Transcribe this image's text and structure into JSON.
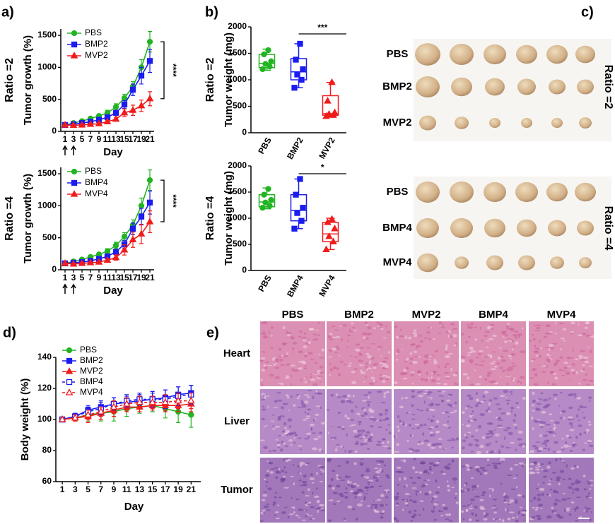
{
  "chart_data": [
    {
      "type": "line",
      "panel_label": "a)",
      "row_label": "Ratio =2",
      "y_label": "Tumor growth (%)",
      "x_label": "Day",
      "annotation": "****",
      "x": [
        1,
        3,
        5,
        7,
        9,
        11,
        13,
        15,
        17,
        19,
        21
      ],
      "xlim": [
        0,
        22
      ],
      "xticks": [
        1,
        3,
        5,
        7,
        9,
        11,
        13,
        15,
        17,
        19,
        21
      ],
      "ylim": [
        0,
        1600
      ],
      "yticks": [
        0,
        500,
        1000,
        1500
      ],
      "series": [
        {
          "name": "PBS",
          "color": "#22b422",
          "marker": "circle",
          "values": [
            100,
            130,
            160,
            200,
            240,
            290,
            380,
            520,
            700,
            1000,
            1400
          ],
          "errors": [
            10,
            15,
            20,
            25,
            30,
            40,
            50,
            60,
            80,
            120,
            160
          ]
        },
        {
          "name": "BMP2",
          "color": "#1c1cf0",
          "marker": "square",
          "values": [
            100,
            110,
            130,
            150,
            180,
            220,
            290,
            420,
            650,
            870,
            1100
          ],
          "errors": [
            10,
            15,
            15,
            20,
            25,
            30,
            40,
            60,
            90,
            130,
            180
          ]
        },
        {
          "name": "MVP2",
          "color": "#f01c1c",
          "marker": "triangle",
          "values": [
            100,
            95,
            100,
            110,
            120,
            150,
            190,
            290,
            330,
            400,
            510
          ],
          "errors": [
            10,
            10,
            10,
            15,
            15,
            20,
            30,
            60,
            80,
            90,
            110
          ]
        }
      ]
    },
    {
      "type": "line",
      "row_label": "Ratio =4",
      "y_label": "Tumor growth (%)",
      "x_label": "Day",
      "annotation": "****",
      "x": [
        1,
        3,
        5,
        7,
        9,
        11,
        13,
        15,
        17,
        19,
        21
      ],
      "xlim": [
        0,
        22
      ],
      "xticks": [
        1,
        3,
        5,
        7,
        9,
        11,
        13,
        15,
        17,
        19,
        21
      ],
      "ylim": [
        0,
        1600
      ],
      "yticks": [
        0,
        500,
        1000,
        1500
      ],
      "series": [
        {
          "name": "PBS",
          "color": "#22b422",
          "marker": "circle",
          "values": [
            100,
            130,
            160,
            200,
            240,
            290,
            380,
            520,
            700,
            1000,
            1400
          ],
          "errors": [
            10,
            15,
            20,
            25,
            30,
            40,
            50,
            60,
            80,
            120,
            160
          ]
        },
        {
          "name": "BMP4",
          "color": "#1c1cf0",
          "marker": "square",
          "values": [
            100,
            110,
            120,
            140,
            170,
            210,
            280,
            400,
            640,
            830,
            1050
          ],
          "errors": [
            10,
            15,
            15,
            20,
            25,
            30,
            40,
            60,
            90,
            130,
            180
          ]
        },
        {
          "name": "MVP4",
          "color": "#f01c1c",
          "marker": "triangle",
          "values": [
            100,
            90,
            100,
            110,
            120,
            150,
            190,
            310,
            470,
            560,
            750
          ],
          "errors": [
            10,
            10,
            10,
            15,
            20,
            25,
            40,
            80,
            120,
            150,
            170
          ]
        }
      ]
    },
    {
      "type": "box",
      "panel_label": "b)",
      "row_label": "Ratio =2",
      "y_label": "Tumor weight (mg)",
      "annotation": "***",
      "categories": [
        "PBS",
        "BMP2",
        "MVP2"
      ],
      "colors": [
        "#22b422",
        "#1c1cf0",
        "#f01c1c"
      ],
      "markers": [
        "circle",
        "square",
        "triangle"
      ],
      "ylim": [
        0,
        2000
      ],
      "yticks": [
        0,
        500,
        1000,
        1500,
        2000
      ],
      "boxes": [
        {
          "min": 1180,
          "q1": 1230,
          "median": 1310,
          "q3": 1480,
          "max": 1580,
          "points": [
            1200,
            1250,
            1300,
            1350,
            1480,
            1560
          ]
        },
        {
          "min": 850,
          "q1": 1000,
          "median": 1150,
          "q3": 1400,
          "max": 1680,
          "points": [
            850,
            1000,
            1100,
            1200,
            1380,
            1680
          ]
        },
        {
          "min": 300,
          "q1": 330,
          "median": 360,
          "q3": 700,
          "max": 950,
          "points": [
            310,
            330,
            350,
            380,
            600,
            950
          ]
        }
      ]
    },
    {
      "type": "box",
      "row_label": "Ratio =4",
      "y_label": "Tumor weight (mg)",
      "annotation": "*",
      "categories": [
        "PBS",
        "BMP4",
        "MVP4"
      ],
      "colors": [
        "#22b422",
        "#1c1cf0",
        "#f01c1c"
      ],
      "markers": [
        "circle",
        "square",
        "triangle"
      ],
      "ylim": [
        0,
        2000
      ],
      "yticks": [
        0,
        500,
        1000,
        1500,
        2000
      ],
      "boxes": [
        {
          "min": 1180,
          "q1": 1220,
          "median": 1310,
          "q3": 1450,
          "max": 1580,
          "points": [
            1200,
            1240,
            1300,
            1350,
            1450,
            1560
          ]
        },
        {
          "min": 800,
          "q1": 950,
          "median": 1150,
          "q3": 1450,
          "max": 1750,
          "points": [
            800,
            950,
            1100,
            1200,
            1450,
            1750
          ]
        },
        {
          "min": 400,
          "q1": 550,
          "median": 700,
          "q3": 920,
          "max": 1000,
          "points": [
            400,
            550,
            650,
            800,
            920,
            980
          ]
        }
      ]
    },
    {
      "type": "line",
      "panel_label": "d)",
      "y_label": "Body weight  (%)",
      "x_label": "Day",
      "x": [
        1,
        3,
        5,
        7,
        9,
        11,
        13,
        15,
        17,
        19,
        21
      ],
      "xlim": [
        0,
        22.5
      ],
      "xticks": [
        1,
        3,
        5,
        7,
        9,
        11,
        13,
        15,
        17,
        19,
        21
      ],
      "ylim": [
        60,
        140
      ],
      "yticks": [
        60,
        80,
        100,
        120,
        140
      ],
      "series": [
        {
          "name": "PBS",
          "color": "#22b422",
          "marker": "circle",
          "values": [
            100,
            101,
            103,
            104,
            105,
            107,
            108,
            109,
            107,
            105,
            103
          ],
          "errors": [
            1,
            2,
            4,
            5,
            6,
            5,
            4,
            4,
            6,
            7,
            8
          ]
        },
        {
          "name": "BMP2",
          "color": "#1c1cf0",
          "marker": "square",
          "values": [
            100,
            102,
            106,
            108,
            110,
            111,
            112,
            113,
            114,
            116,
            117
          ],
          "errors": [
            1,
            2,
            3,
            4,
            4,
            4,
            4,
            4,
            5,
            5,
            5
          ]
        },
        {
          "name": "MVP2",
          "color": "#f01c1c",
          "marker": "triangle",
          "values": [
            100,
            101,
            102,
            104,
            106,
            108,
            108,
            109,
            109,
            109,
            110
          ],
          "errors": [
            1,
            2,
            4,
            4,
            4,
            3,
            3,
            3,
            4,
            4,
            5
          ]
        },
        {
          "name": "BMP4",
          "color": "#1c1cf0",
          "marker": "square",
          "open": true,
          "dashed": true,
          "values": [
            100,
            102,
            105,
            107,
            110,
            112,
            113,
            113,
            113,
            115,
            116
          ],
          "errors": [
            1,
            2,
            3,
            4,
            4,
            4,
            4,
            5,
            6,
            6,
            6
          ]
        },
        {
          "name": "MVP4",
          "color": "#f01c1c",
          "marker": "triangle",
          "open": true,
          "dashed": true,
          "values": [
            100,
            101,
            103,
            105,
            108,
            110,
            111,
            111,
            111,
            112,
            112
          ],
          "errors": [
            1,
            2,
            3,
            3,
            4,
            4,
            4,
            4,
            5,
            5,
            5
          ]
        }
      ]
    }
  ],
  "photos": {
    "panel_label": "c)",
    "groups": [
      {
        "label": "Ratio =2",
        "rows": [
          "PBS",
          "BMP2",
          "MVP2"
        ]
      },
      {
        "label": "Ratio =4",
        "rows": [
          "PBS",
          "BMP4",
          "MVP4"
        ]
      }
    ]
  },
  "histology": {
    "panel_label": "e)",
    "columns": [
      "PBS",
      "BMP2",
      "MVP2",
      "BMP4",
      "MVP4"
    ],
    "rows": [
      "Heart",
      "Liver",
      "Tumor"
    ]
  }
}
